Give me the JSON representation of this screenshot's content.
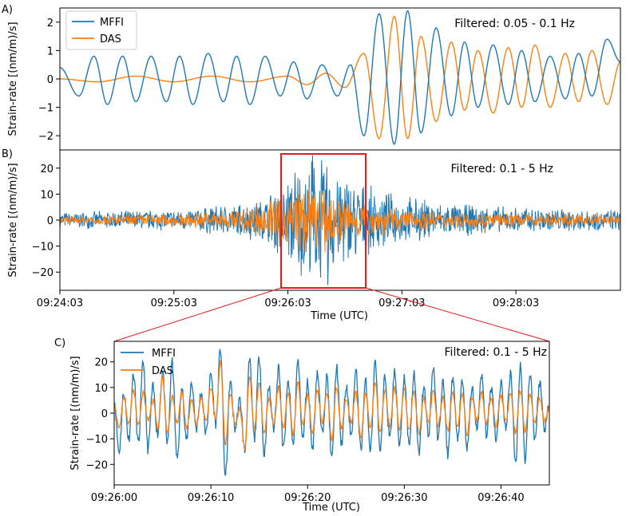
{
  "colors": {
    "mffi": "#1f77b4",
    "das": "#ff7f0e",
    "box": "#e41a1c"
  },
  "figure": {
    "panel_labels": [
      "A)",
      "B)",
      "C)"
    ]
  },
  "chart_data": [
    {
      "type": "line",
      "panel": "A)",
      "annotation": "Filtered: 0.05 - 0.1 Hz",
      "ylabel": "Strain-rate [(nm/m)/s]",
      "xlabel": "",
      "xlim": [
        "09:24:03",
        "09:28:58"
      ],
      "ylim": [
        -2.5,
        2.5
      ],
      "y_ticks": [
        -2,
        -1,
        0,
        1,
        2
      ],
      "legend_position": "top-left",
      "grid": false,
      "series": [
        {
          "name": "MFFI",
          "color": "#1f77b4",
          "x_seconds_after_start": [
            0,
            10,
            18,
            25,
            33,
            40,
            48,
            56,
            63,
            70,
            78,
            86,
            93,
            100,
            108,
            116,
            123,
            130,
            138,
            146,
            153,
            160,
            168,
            176,
            183,
            190,
            198,
            206,
            213,
            220,
            228,
            236,
            243,
            250,
            258,
            266,
            273,
            280,
            288,
            295
          ],
          "y": [
            0.4,
            -0.6,
            0.8,
            -0.9,
            0.8,
            -0.8,
            0.8,
            -0.8,
            0.8,
            -0.9,
            0.9,
            -0.8,
            0.8,
            -0.9,
            0.8,
            -0.6,
            0.6,
            -0.7,
            0.5,
            -0.6,
            0.5,
            -2.0,
            2.3,
            -2.3,
            2.4,
            -1.9,
            1.8,
            -1.3,
            1.3,
            -1.0,
            1.2,
            -0.9,
            1.0,
            -0.8,
            0.8,
            -0.7,
            0.9,
            -0.6,
            1.4,
            0.6
          ]
        },
        {
          "name": "DAS",
          "color": "#ff7f0e",
          "x_seconds_after_start": [
            0,
            20,
            40,
            60,
            80,
            100,
            120,
            130,
            140,
            150,
            160,
            168,
            176,
            183,
            190,
            198,
            206,
            213,
            220,
            228,
            236,
            243,
            250,
            258,
            266,
            273,
            280,
            288,
            295
          ],
          "y": [
            0,
            -0.1,
            0.1,
            -0.1,
            0.1,
            -0.1,
            0.1,
            -0.2,
            0.2,
            -0.3,
            0.9,
            -2.1,
            2.2,
            -2.1,
            1.5,
            -1.5,
            1.3,
            -1.1,
            1.0,
            -1.2,
            1.1,
            -1.0,
            1.2,
            -1.0,
            0.9,
            -0.8,
            1.0,
            -0.9,
            0.6
          ]
        }
      ]
    },
    {
      "type": "line",
      "panel": "B)",
      "annotation": "Filtered: 0.1 - 5 Hz",
      "ylabel": "Strain-rate [(nm/m)/s]",
      "xlabel": "Time (UTC)",
      "x_tick_labels": [
        "09:24:03",
        "09:25:03",
        "09:26:03",
        "09:27:03",
        "09:28:03"
      ],
      "xlim": [
        "09:24:03",
        "09:28:58"
      ],
      "ylim": [
        -27,
        27
      ],
      "y_ticks": [
        -20,
        -10,
        0,
        10,
        20
      ],
      "highlight_window": [
        "09:26:00",
        "09:26:45"
      ],
      "grid": false,
      "series": [
        {
          "name": "MFFI",
          "color": "#1f77b4",
          "envelope_t": [
            0,
            60,
            90,
            105,
            117,
            125,
            137,
            150,
            165,
            180,
            210,
            240,
            295
          ],
          "envelope_amp": [
            3,
            4,
            6,
            8,
            14,
            22,
            24,
            18,
            12,
            9,
            6,
            5,
            4
          ],
          "extremes": [
            25,
            -25
          ]
        },
        {
          "name": "DAS",
          "color": "#ff7f0e",
          "envelope_t": [
            0,
            60,
            90,
            105,
            117,
            125,
            137,
            150,
            165,
            180,
            210,
            240,
            295
          ],
          "envelope_amp": [
            1.5,
            2.5,
            4,
            6,
            10,
            13,
            12,
            9,
            6,
            4,
            3,
            2.5,
            2
          ]
        }
      ]
    },
    {
      "type": "line",
      "panel": "C)",
      "annotation": "Filtered: 0.1 - 5 Hz",
      "ylabel": "Strain-rate [(nm/m)/s]",
      "xlabel": "Time (UTC)",
      "x_tick_labels": [
        "09:26:00",
        "09:26:10",
        "09:26:20",
        "09:26:30",
        "09:26:40"
      ],
      "xlim": [
        "09:26:00",
        "09:26:45"
      ],
      "ylim": [
        -28,
        28
      ],
      "y_ticks": [
        -20,
        -10,
        0,
        10,
        20
      ],
      "legend_position": "top-left",
      "grid": false,
      "series": [
        {
          "name": "MFFI",
          "color": "#1f77b4",
          "x_seconds": [
            0,
            0.5,
            1,
            1.5,
            2,
            2.5,
            3,
            3.5,
            4,
            4.5,
            5,
            5.5,
            6,
            6.5,
            7,
            7.5,
            8,
            8.5,
            9,
            9.5,
            10,
            10.5,
            11,
            11.5,
            12,
            12.5,
            13,
            13.5,
            14,
            14.5,
            15,
            15.5,
            16,
            16.5,
            17,
            17.5,
            18,
            18.5,
            19,
            19.5,
            20,
            20.5,
            21,
            21.5,
            22,
            22.5,
            23,
            23.5,
            24,
            24.5,
            25,
            25.5,
            26,
            26.5,
            27,
            27.5,
            28,
            28.5,
            29,
            29.5,
            30,
            30.5,
            31,
            31.5,
            32,
            32.5,
            33,
            33.5,
            34,
            34.5,
            35,
            35.5,
            36,
            36.5,
            37,
            37.5,
            38,
            38.5,
            39,
            39.5,
            40,
            40.5,
            41,
            41.5,
            42,
            42.5,
            43,
            43.5,
            44,
            44.5,
            45
          ],
          "y": [
            5,
            -15,
            8,
            -10,
            15,
            -12,
            20,
            -14,
            10,
            -8,
            16,
            -12,
            20,
            -18,
            9,
            -10,
            12,
            -6,
            8,
            -8,
            15,
            -4,
            25,
            -25,
            12,
            -6,
            5,
            -15,
            20,
            -10,
            22,
            -16,
            10,
            -6,
            18,
            -14,
            12,
            -12,
            20,
            -10,
            12,
            -14,
            16,
            -8,
            14,
            -18,
            18,
            -12,
            10,
            -8,
            16,
            -14,
            12,
            -14,
            20,
            -16,
            14,
            -10,
            16,
            -12,
            14,
            -12,
            15,
            -16,
            10,
            -8,
            18,
            -10,
            12,
            -16,
            14,
            -10,
            12,
            -14,
            10,
            -6,
            14,
            -8,
            10,
            -10,
            12,
            -6,
            16,
            -20,
            19,
            -18,
            16,
            -10,
            12,
            -6,
            3
          ]
        },
        {
          "name": "DAS",
          "color": "#ff7f0e",
          "x_seconds": [
            0,
            0.5,
            1,
            1.5,
            2,
            2.5,
            3,
            3.5,
            4,
            4.5,
            5,
            5.5,
            6,
            6.5,
            7,
            7.5,
            8,
            8.5,
            9,
            9.5,
            10,
            10.5,
            11,
            11.5,
            12,
            12.5,
            13,
            13.5,
            14,
            14.5,
            15,
            15.5,
            16,
            16.5,
            17,
            17.5,
            18,
            18.5,
            19,
            19.5,
            20,
            20.5,
            21,
            21.5,
            22,
            22.5,
            23,
            23.5,
            24,
            24.5,
            25,
            25.5,
            26,
            26.5,
            27,
            27.5,
            28,
            28.5,
            29,
            29.5,
            30,
            30.5,
            31,
            31.5,
            32,
            32.5,
            33,
            33.5,
            34,
            34.5,
            35,
            35.5,
            36,
            36.5,
            37,
            37.5,
            38,
            38.5,
            39,
            39.5,
            40,
            40.5,
            41,
            41.5,
            42,
            42.5,
            43,
            43.5,
            44,
            44.5,
            45
          ],
          "y": [
            4,
            -6,
            6,
            -4,
            9,
            -5,
            8,
            -3,
            5,
            -6,
            14,
            -8,
            6,
            -4,
            8,
            -6,
            5,
            -4,
            6,
            -3,
            10,
            -2,
            20,
            -12,
            8,
            -4,
            2,
            -14,
            14,
            -6,
            12,
            -8,
            6,
            -4,
            10,
            -6,
            8,
            -8,
            12,
            -4,
            7,
            -8,
            9,
            -4,
            8,
            -10,
            10,
            -6,
            6,
            -4,
            8,
            -10,
            8,
            -6,
            12,
            -8,
            9,
            -5,
            10,
            -6,
            9,
            -7,
            9,
            -8,
            6,
            -4,
            9,
            -5,
            6,
            -7,
            8,
            -5,
            7,
            -8,
            6,
            -3,
            8,
            -4,
            6,
            -5,
            7,
            -3,
            8,
            -8,
            9,
            -7,
            8,
            -4,
            6,
            -3,
            2
          ]
        }
      ]
    }
  ]
}
